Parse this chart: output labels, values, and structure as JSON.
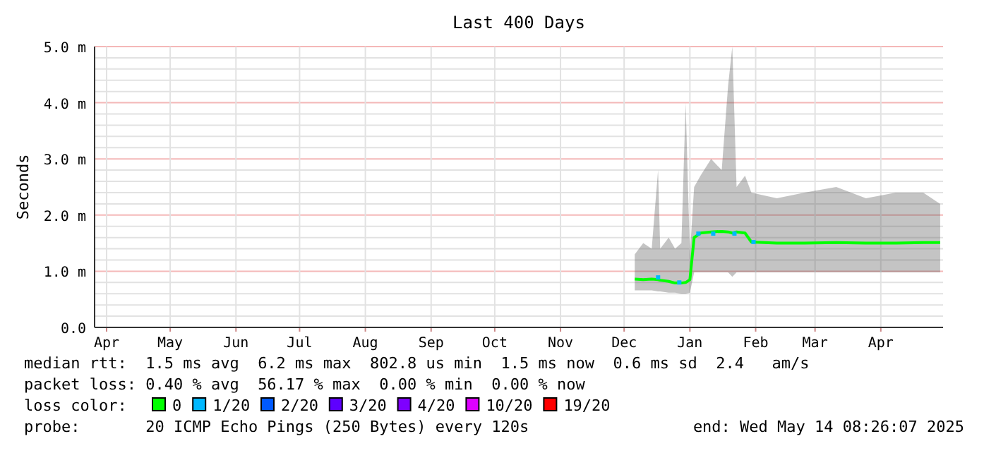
{
  "chart_data": {
    "type": "line",
    "title": "Last 400 Days",
    "ylabel": "Seconds",
    "legend_title": "loss color:",
    "legend": "bottom",
    "grid": true,
    "xlim": [
      "2024-04-09T08:26",
      "2025-05-14T08:26"
    ],
    "xticks": [
      {
        "value": "2024-04-15",
        "label": "Apr"
      },
      {
        "value": "2024-05-15",
        "label": "May"
      },
      {
        "value": "2024-06-15",
        "label": "Jun"
      },
      {
        "value": "2024-07-15",
        "label": "Jul"
      },
      {
        "value": "2024-08-15",
        "label": "Aug"
      },
      {
        "value": "2024-09-15",
        "label": "Sep"
      },
      {
        "value": "2024-10-15",
        "label": "Oct"
      },
      {
        "value": "2024-11-15",
        "label": "Nov"
      },
      {
        "value": "2024-12-15",
        "label": "Dec"
      },
      {
        "value": "2025-01-15",
        "label": "Jan"
      },
      {
        "value": "2025-02-15",
        "label": "Feb"
      },
      {
        "value": "2025-03-15",
        "label": "Mar"
      },
      {
        "value": "2025-04-15",
        "label": "Apr"
      }
    ],
    "ylim": [
      0,
      5
    ],
    "yticks": [
      {
        "value": 0,
        "label": "0.0"
      },
      {
        "value": 0.2,
        "label": null
      },
      {
        "value": 0.4,
        "label": null
      },
      {
        "value": 0.6,
        "label": null
      },
      {
        "value": 0.8,
        "label": null
      },
      {
        "value": 1,
        "label": "1.0 m"
      },
      {
        "value": 1.2,
        "label": null
      },
      {
        "value": 1.4,
        "label": null
      },
      {
        "value": 1.6,
        "label": null
      },
      {
        "value": 1.8,
        "label": null
      },
      {
        "value": 2,
        "label": "2.0 m"
      },
      {
        "value": 2.2,
        "label": null
      },
      {
        "value": 2.4,
        "label": null
      },
      {
        "value": 2.6,
        "label": null
      },
      {
        "value": 2.8,
        "label": null
      },
      {
        "value": 3,
        "label": "3.0 m"
      },
      {
        "value": 3.2,
        "label": null
      },
      {
        "value": 3.4,
        "label": null
      },
      {
        "value": 3.6,
        "label": null
      },
      {
        "value": 3.8,
        "label": null
      },
      {
        "value": 4,
        "label": "4.0 m"
      },
      {
        "value": 4.2,
        "label": null
      },
      {
        "value": 4.4,
        "label": null
      },
      {
        "value": 4.6,
        "label": null
      },
      {
        "value": 4.8,
        "label": null
      },
      {
        "value": 5,
        "label": "5.0 m"
      }
    ],
    "series": [
      {
        "name": "0",
        "color": "#00ff00",
        "x": [
          "2024-12-20",
          "2024-12-24",
          "2024-12-28",
          "2024-12-31",
          "2025-01-01",
          "2025-01-05",
          "2025-01-08",
          "2025-01-11",
          "2025-01-13",
          "2025-01-15",
          "2025-01-17",
          "2025-01-20",
          "2025-01-25",
          "2025-01-30",
          "2025-02-02",
          "2025-02-04",
          "2025-02-06",
          "2025-02-10",
          "2025-02-13",
          "2025-02-25",
          "2025-03-10",
          "2025-03-25",
          "2025-04-08",
          "2025-04-22",
          "2025-05-05",
          "2025-05-13"
        ],
        "values": [
          0.86,
          0.85,
          0.86,
          0.85,
          0.84,
          0.82,
          0.79,
          0.79,
          0.8,
          0.85,
          1.6,
          1.68,
          1.7,
          1.71,
          1.7,
          1.68,
          1.7,
          1.68,
          1.52,
          1.5,
          1.5,
          1.51,
          1.5,
          1.5,
          1.51,
          1.51
        ],
        "lower": [
          0.66,
          0.66,
          0.66,
          0.64,
          0.64,
          0.62,
          0.62,
          0.6,
          0.6,
          0.62,
          0.98,
          0.98,
          0.98,
          0.98,
          0.98,
          0.9,
          0.98,
          0.98,
          0.98,
          0.98,
          0.98,
          0.98,
          0.98,
          0.98,
          0.98,
          0.98
        ],
        "upper": [
          1.3,
          1.5,
          1.4,
          2.8,
          1.4,
          1.6,
          1.4,
          1.5,
          4,
          1.3,
          2.5,
          2.7,
          3,
          2.8,
          4.3,
          5,
          2.5,
          2.7,
          2.4,
          2.3,
          2.4,
          2.5,
          2.3,
          2.4,
          2.4,
          2.2
        ]
      },
      {
        "name": "1/20",
        "color": "#00b8ff",
        "type": "scatter",
        "x": [
          "2024-12-31",
          "2025-01-10",
          "2025-01-19",
          "2025-01-26",
          "2025-02-05",
          "2025-02-14"
        ],
        "values": [
          0.89,
          0.8,
          1.67,
          1.67,
          1.67,
          1.52
        ]
      },
      {
        "name": "2/20",
        "color": "#0059ff",
        "type": "scatter"
      },
      {
        "name": "3/20",
        "color": "#5e00ff",
        "type": "scatter"
      },
      {
        "name": "4/20",
        "color": "#7e00ff",
        "type": "scatter"
      },
      {
        "name": "10/20",
        "color": "#dd00ff",
        "type": "scatter"
      },
      {
        "name": "19/20",
        "color": "#ff0000",
        "type": "scatter"
      }
    ],
    "annotations": [
      "median rtt:  1.5 ms avg  6.2 ms max  802.8 us min  1.5 ms now  0.6 ms sd  2.4   am/s",
      "packet loss: 0.40 % avg  56.17 % max  0.00 % min  0.00 % now",
      "probe:       20 ICMP Echo Pings (250 Bytes) every 120s",
      "end: Wed May 14 08:26:07 2025"
    ]
  }
}
